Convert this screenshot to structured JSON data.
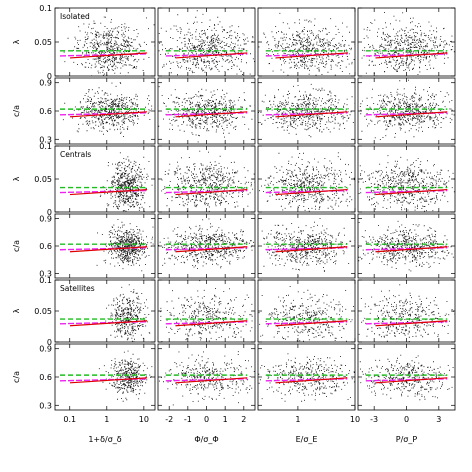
{
  "chart_data": {
    "type": "scatter",
    "rows": [
      {
        "group": "Isolated",
        "ylabel": "λ",
        "yticks": [
          "0.1",
          "0.05",
          "0"
        ],
        "yvals": [
          0.1,
          0.05,
          0.0
        ],
        "ylim": [
          0.0,
          0.1
        ]
      },
      {
        "group": "",
        "ylabel": "c/a",
        "yticks": [
          "0.9",
          "0.6",
          "0.3"
        ],
        "yvals": [
          0.9,
          0.6,
          0.3
        ],
        "ylim": [
          0.25,
          0.95
        ]
      },
      {
        "group": "Centrals",
        "ylabel": "λ",
        "yticks": [
          "0.1",
          "0.05",
          "0"
        ],
        "yvals": [
          0.1,
          0.05,
          0.0
        ],
        "ylim": [
          0.0,
          0.1
        ]
      },
      {
        "group": "",
        "ylabel": "c/a",
        "yticks": [
          "0.9",
          "0.6",
          "0.3"
        ],
        "yvals": [
          0.9,
          0.6,
          0.3
        ],
        "ylim": [
          0.25,
          0.95
        ]
      },
      {
        "group": "Satellites",
        "ylabel": "λ",
        "yticks": [
          "0.1",
          "0.05",
          "0"
        ],
        "yvals": [
          0.1,
          0.05,
          0.0
        ],
        "ylim": [
          0.0,
          0.1
        ]
      },
      {
        "group": "",
        "ylabel": "c/a",
        "yticks": [
          "0.9",
          "0.6",
          "0.3"
        ],
        "yvals": [
          0.9,
          0.6,
          0.3
        ],
        "ylim": [
          0.25,
          0.95
        ]
      }
    ],
    "columns": [
      {
        "xlabel": "1+δ/σ_δ",
        "xticks": [
          "0.1",
          "1",
          "10"
        ],
        "xvals": [
          0.1,
          1,
          10
        ],
        "xlim": [
          0.04,
          20
        ],
        "log": true
      },
      {
        "xlabel": "Φ/σ_Φ",
        "xticks": [
          "-2",
          "-1",
          "0",
          "1",
          "2"
        ],
        "xvals": [
          -2,
          -1,
          0,
          1,
          2
        ],
        "xlim": [
          -2.6,
          2.6
        ],
        "log": false
      },
      {
        "xlabel": "E/σ_E",
        "xticks": [
          "1",
          "10"
        ],
        "xvals": [
          1,
          10
        ],
        "xlim": [
          0.2,
          10
        ],
        "log": true
      },
      {
        "xlabel": "P/σ_P",
        "xticks": [
          "-3",
          "0",
          "3"
        ],
        "xvals": [
          -3,
          0,
          3
        ],
        "xlim": [
          -4.5,
          4.5
        ],
        "log": false
      }
    ],
    "trend_lines": {
      "green": "#22bb22",
      "magenta": "#ee22ee",
      "red": "#dd0000",
      "lambda_median_green": 0.037,
      "lambda_median_magenta": 0.031,
      "ca_median_green": 0.62,
      "ca_median_magenta": 0.57
    },
    "grid": false,
    "legend": "none"
  }
}
